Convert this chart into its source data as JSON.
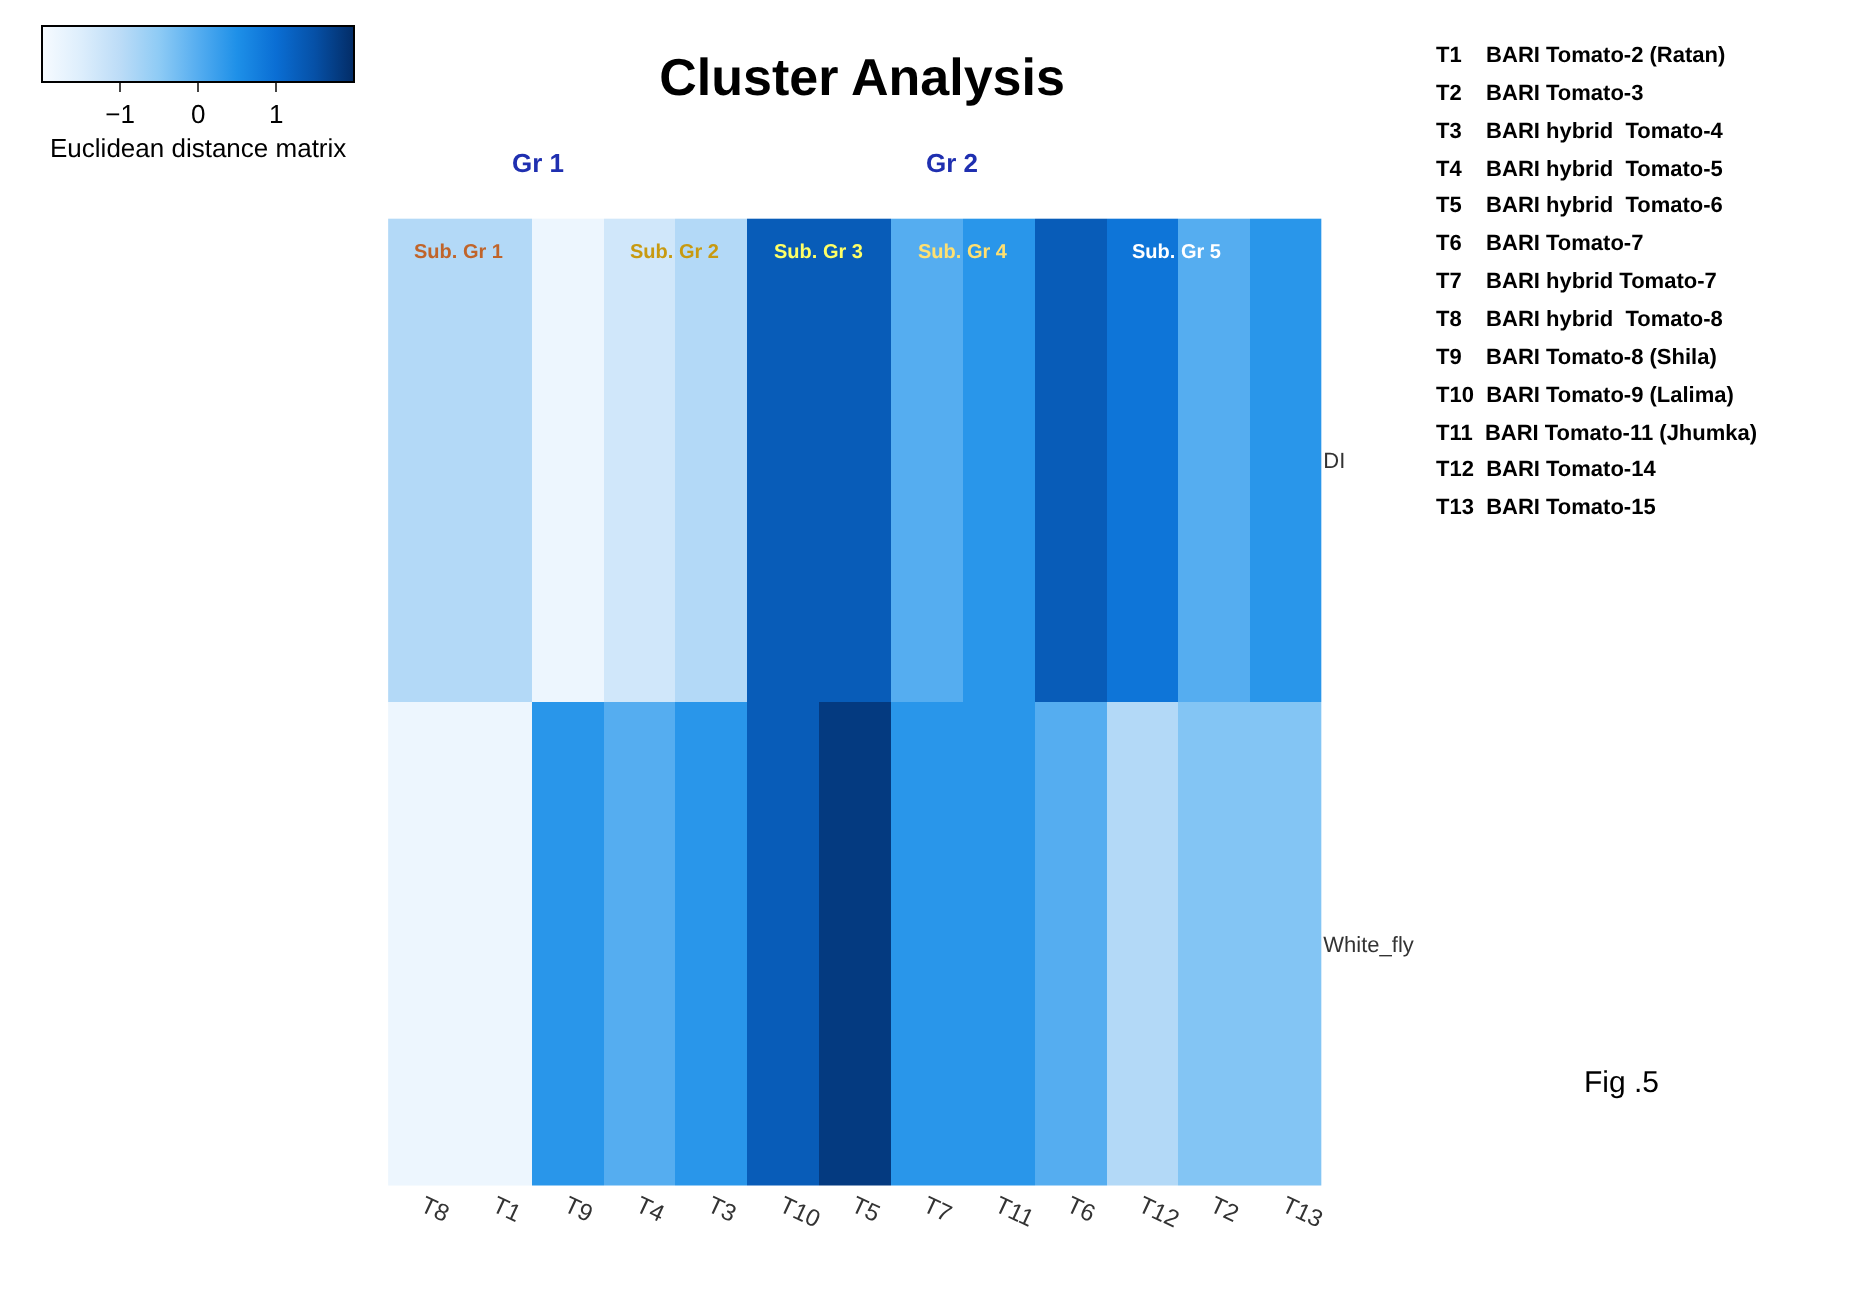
{
  "chart_data": {
    "type": "heatmap",
    "title": "Cluster Analysis",
    "clabel": "Euclidean distance matrix",
    "categories": [
      "T8",
      "T1",
      "T9",
      "T4",
      "T3",
      "T10",
      "T5",
      "T7",
      "T11",
      "T6",
      "T12",
      "T2",
      "T13"
    ],
    "y_categories": [
      "DI",
      "White_fly"
    ],
    "cells": [
      [
        -0.9,
        -0.9,
        -1.8,
        -1.3,
        -0.9,
        1.3,
        1.3,
        0,
        0.4,
        1.3,
        0.9,
        0,
        0.4
      ],
      [
        -1.8,
        -1.8,
        0.4,
        0,
        0.4,
        1.3,
        1.8,
        0.4,
        0.4,
        0,
        -0.9,
        -0.4,
        -0.4
      ]
    ],
    "clim": [
      -2,
      2
    ],
    "cticks": [
      -1,
      0,
      1
    ],
    "annotations": [
      "Gr 1",
      "Gr 2",
      "Sub. Gr 1",
      "Sub. Gr 2",
      "Sub. Gr 3",
      "Sub. Gr 4",
      "Sub. Gr 5",
      "T1    BARI Tomato-2 (Ratan)",
      "T2    BARI Tomato-3",
      "T3    BARI hybrid  Tomato-4",
      "T4    BARI hybrid  Tomato-5",
      "T5    BARI hybrid  Tomato-6",
      "T6    BARI Tomato-7",
      "T7    BARI hybrid Tomato-7",
      "T8    BARI hybrid  Tomato-8",
      "T9    BARI Tomato-8 (Shila)",
      "T10  BARI Tomato-9 (Lalima)",
      "T11  BARI Tomato-11 (Jhumka)",
      "T12  BARI Tomato-14",
      "T13  BARI Tomato-15",
      "Fig .5"
    ]
  }
}
